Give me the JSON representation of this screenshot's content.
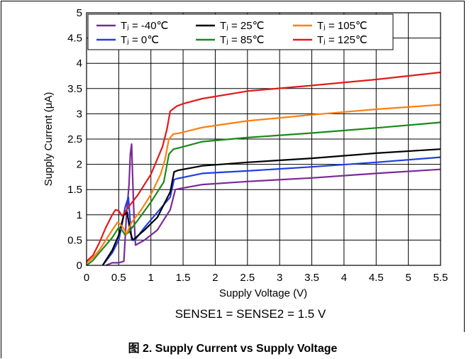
{
  "chart_data": {
    "type": "line",
    "xlabel": "Supply Voltage (V)",
    "ylabel": "Supply Current (μA)",
    "xlim": [
      0,
      5.5
    ],
    "ylim": [
      0,
      5
    ],
    "xticks": [
      "0",
      "0.5",
      "1",
      "1.5",
      "2",
      "2.5",
      "3",
      "3.5",
      "4",
      "4.5",
      "5",
      "5.5"
    ],
    "yticks": [
      "0",
      "0.5",
      "1",
      "1.5",
      "2",
      "2.5",
      "3",
      "3.5",
      "4",
      "4.5",
      "5"
    ],
    "grid": true,
    "legend_position": "top-left",
    "note": "SENSE1 = SENSE2 = 1.5 V",
    "caption": "图 2. Supply Current vs Supply Voltage",
    "series": [
      {
        "name": "Tⱼ = -40℃",
        "color": "#7b2a96",
        "x": [
          0.3,
          0.4,
          0.5,
          0.58,
          0.62,
          0.66,
          0.68,
          0.7,
          0.72,
          0.74,
          0.76,
          0.9,
          1.1,
          1.3,
          1.38,
          1.45,
          1.8,
          2.5,
          3.5,
          4.5,
          5.5
        ],
        "y": [
          0,
          0.05,
          0.05,
          0.08,
          1.0,
          1.6,
          2.2,
          2.4,
          1.6,
          0.9,
          0.4,
          0.5,
          0.7,
          1.1,
          1.5,
          1.52,
          1.6,
          1.66,
          1.73,
          1.82,
          1.9
        ]
      },
      {
        "name": "Tⱼ = 0℃",
        "color": "#1f3fe0",
        "x": [
          0.25,
          0.4,
          0.5,
          0.55,
          0.6,
          0.65,
          0.7,
          0.75,
          0.9,
          1.1,
          1.3,
          1.36,
          1.42,
          1.8,
          2.5,
          3.5,
          4.5,
          5.5
        ],
        "y": [
          0,
          0.25,
          0.5,
          0.8,
          1.15,
          1.35,
          0.5,
          0.5,
          0.75,
          1.05,
          1.35,
          1.7,
          1.72,
          1.82,
          1.87,
          1.95,
          2.04,
          2.14
        ]
      },
      {
        "name": "Tⱼ = 25℃",
        "color": "#000000",
        "x": [
          0.25,
          0.4,
          0.5,
          0.58,
          0.63,
          0.68,
          0.72,
          0.9,
          1.1,
          1.3,
          1.36,
          1.42,
          1.8,
          2.5,
          3.5,
          4.5,
          5.5
        ],
        "y": [
          0,
          0.3,
          0.6,
          1.0,
          1.05,
          0.65,
          0.5,
          0.7,
          0.95,
          1.45,
          1.85,
          1.88,
          1.97,
          2.04,
          2.12,
          2.22,
          2.3
        ]
      },
      {
        "name": "Tⱼ = 85℃",
        "color": "#1a8a1a",
        "x": [
          0,
          0.1,
          0.2,
          0.3,
          0.4,
          0.45,
          0.5,
          0.55,
          0.6,
          0.65,
          0.8,
          1.0,
          1.2,
          1.28,
          1.35,
          1.45,
          1.8,
          2.5,
          3.5,
          4.5,
          5.5
        ],
        "y": [
          0,
          0.1,
          0.25,
          0.4,
          0.55,
          0.65,
          0.75,
          0.7,
          0.6,
          0.65,
          0.9,
          1.25,
          1.65,
          2.2,
          2.3,
          2.33,
          2.45,
          2.53,
          2.62,
          2.72,
          2.83
        ]
      },
      {
        "name": "Tⱼ = 105℃",
        "color": "#ff7f0e",
        "x": [
          0,
          0.1,
          0.2,
          0.3,
          0.4,
          0.48,
          0.52,
          0.58,
          0.62,
          0.7,
          0.85,
          1.0,
          1.15,
          1.22,
          1.28,
          1.35,
          1.45,
          1.8,
          2.5,
          3.5,
          4.5,
          5.5
        ],
        "y": [
          0.05,
          0.15,
          0.3,
          0.5,
          0.7,
          0.85,
          0.82,
          0.72,
          0.62,
          0.85,
          1.1,
          1.4,
          1.8,
          2.1,
          2.5,
          2.6,
          2.62,
          2.73,
          2.86,
          2.98,
          3.09,
          3.18
        ]
      },
      {
        "name": "Tⱼ = 125℃",
        "color": "#e31a1c",
        "x": [
          0,
          0.1,
          0.2,
          0.3,
          0.4,
          0.45,
          0.5,
          0.55,
          0.6,
          0.65,
          0.8,
          1.0,
          1.18,
          1.25,
          1.3,
          1.4,
          1.5,
          1.8,
          2.5,
          3.5,
          4.5,
          5.5
        ],
        "y": [
          0.08,
          0.2,
          0.45,
          0.75,
          1.0,
          1.1,
          1.08,
          0.98,
          1.05,
          1.15,
          1.4,
          1.8,
          2.35,
          2.7,
          3.05,
          3.15,
          3.2,
          3.3,
          3.45,
          3.56,
          3.68,
          3.82
        ]
      }
    ]
  }
}
